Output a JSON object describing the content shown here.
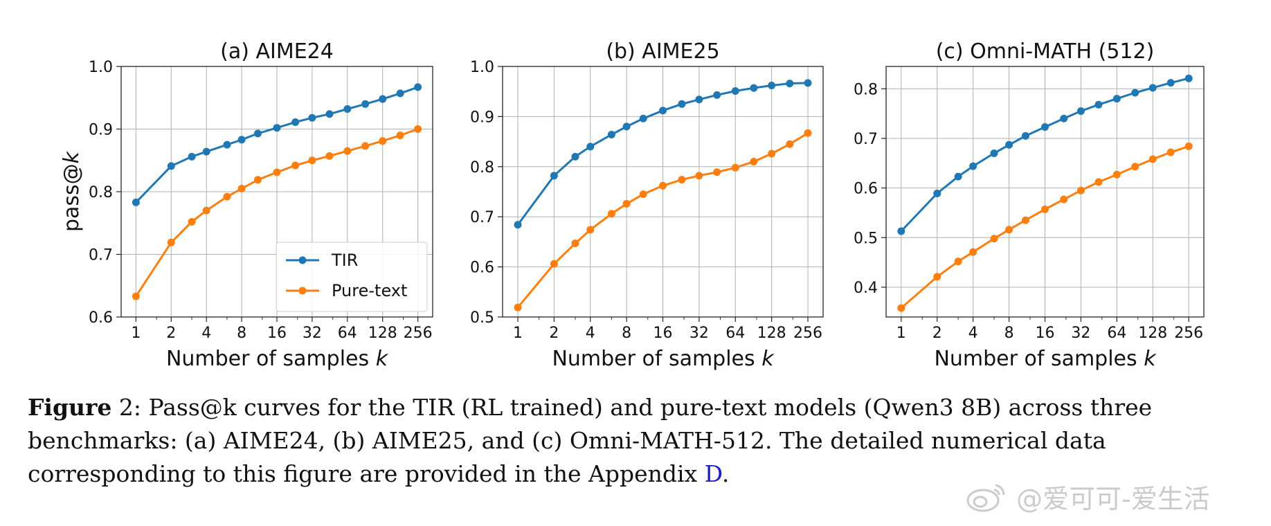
{
  "chart_data": [
    {
      "type": "line",
      "title": "(a) AIME24",
      "xlabel": "Number of samples k",
      "ylabel": "pass@k",
      "x_scale": "log2",
      "x_ticks": [
        1,
        2,
        4,
        8,
        16,
        32,
        64,
        128,
        256
      ],
      "y_ticks": [
        0.6,
        0.7,
        0.8,
        0.9,
        1.0
      ],
      "y_tick_labels": [
        "0.6",
        "0.7",
        "0.8",
        "0.9",
        "1.0"
      ],
      "ylim": [
        0.6,
        1.0
      ],
      "grid": true,
      "legend": "lower-right",
      "x": [
        1,
        2,
        3,
        4,
        6,
        8,
        11,
        16,
        23,
        32,
        45,
        64,
        91,
        128,
        181,
        256
      ],
      "series": [
        {
          "name": "TIR",
          "color": "#1f77b4",
          "values": [
            0.783,
            0.841,
            0.856,
            0.864,
            0.875,
            0.883,
            0.893,
            0.902,
            0.911,
            0.918,
            0.924,
            0.932,
            0.94,
            0.948,
            0.957,
            0.967
          ]
        },
        {
          "name": "Pure-text",
          "color": "#ff7f0e",
          "values": [
            0.633,
            0.719,
            0.752,
            0.77,
            0.792,
            0.805,
            0.819,
            0.831,
            0.842,
            0.85,
            0.857,
            0.865,
            0.873,
            0.881,
            0.89,
            0.9
          ]
        }
      ]
    },
    {
      "type": "line",
      "title": "(b) AIME25",
      "xlabel": "Number of samples k",
      "x_scale": "log2",
      "x_ticks": [
        1,
        2,
        4,
        8,
        16,
        32,
        64,
        128,
        256
      ],
      "y_ticks": [
        0.5,
        0.6,
        0.7,
        0.8,
        0.9,
        1.0
      ],
      "y_tick_labels": [
        "0.5",
        "0.6",
        "0.7",
        "0.8",
        "0.9",
        "1.0"
      ],
      "ylim": [
        0.5,
        1.0
      ],
      "grid": true,
      "x": [
        1,
        2,
        3,
        4,
        6,
        8,
        11,
        16,
        23,
        32,
        45,
        64,
        91,
        128,
        181,
        256
      ],
      "series": [
        {
          "name": "TIR",
          "color": "#1f77b4",
          "values": [
            0.684,
            0.782,
            0.82,
            0.84,
            0.864,
            0.88,
            0.896,
            0.912,
            0.925,
            0.934,
            0.943,
            0.951,
            0.957,
            0.962,
            0.966,
            0.967
          ]
        },
        {
          "name": "Pure-text",
          "color": "#ff7f0e",
          "values": [
            0.519,
            0.606,
            0.647,
            0.674,
            0.706,
            0.726,
            0.745,
            0.762,
            0.774,
            0.782,
            0.789,
            0.798,
            0.81,
            0.826,
            0.845,
            0.867
          ]
        }
      ]
    },
    {
      "type": "line",
      "title": "(c) Omni-MATH (512)",
      "xlabel": "Number of samples k",
      "x_scale": "log2",
      "x_ticks": [
        1,
        2,
        4,
        8,
        16,
        32,
        64,
        128,
        256
      ],
      "y_ticks": [
        0.4,
        0.5,
        0.6,
        0.7,
        0.8
      ],
      "y_tick_labels": [
        "0.4",
        "0.5",
        "0.6",
        "0.7",
        "0.8"
      ],
      "ylim": [
        0.34,
        0.845
      ],
      "grid": true,
      "x": [
        1,
        2,
        3,
        4,
        6,
        8,
        11,
        16,
        23,
        32,
        45,
        64,
        91,
        128,
        181,
        256
      ],
      "series": [
        {
          "name": "TIR",
          "color": "#1f77b4",
          "values": [
            0.513,
            0.589,
            0.623,
            0.644,
            0.67,
            0.687,
            0.705,
            0.723,
            0.74,
            0.755,
            0.768,
            0.78,
            0.792,
            0.802,
            0.812,
            0.821
          ]
        },
        {
          "name": "Pure-text",
          "color": "#ff7f0e",
          "values": [
            0.358,
            0.421,
            0.452,
            0.471,
            0.498,
            0.516,
            0.535,
            0.557,
            0.577,
            0.595,
            0.612,
            0.627,
            0.643,
            0.658,
            0.672,
            0.684
          ]
        }
      ]
    }
  ],
  "caption": {
    "label": "Figure",
    "number": "2",
    "text": ":  Pass@k curves for the TIR (RL trained) and pure-text models (Qwen3 8B) across three benchmarks: (a) AIME24, (b) AIME25, and (c) Omni-MATH-512. The detailed numerical data corresponding to this figure are provided in the Appendix ",
    "link": "D",
    "end": "."
  },
  "watermark": {
    "icon": "weibo-icon",
    "text": "@爱可可-爱生活"
  }
}
